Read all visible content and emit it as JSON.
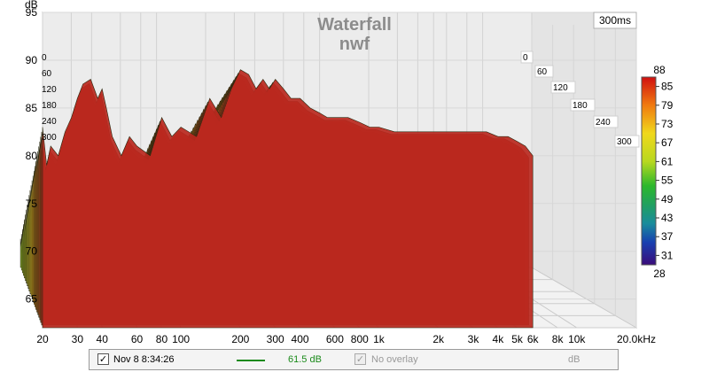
{
  "chart_data": {
    "type": "area",
    "title": "Waterfall",
    "subtitle": "nwf",
    "time_window_label": "300ms",
    "x_unit": "Hz",
    "y_unit": "dB",
    "xlim": [
      20,
      20000
    ],
    "ylim": [
      62,
      95
    ],
    "x_scale": "log",
    "grid": true,
    "x_ticks": [
      "20",
      "30",
      "40",
      "60",
      "80",
      "100",
      "200",
      "300",
      "400",
      "600",
      "800",
      "1k",
      "2k",
      "3k",
      "4k",
      "5k",
      "6k",
      "8k",
      "10k",
      "20.0kHz"
    ],
    "x_tick_values": [
      20,
      30,
      40,
      60,
      80,
      100,
      200,
      300,
      400,
      600,
      800,
      1000,
      2000,
      3000,
      4000,
      5000,
      6000,
      8000,
      10000,
      20000
    ],
    "y_ticks": [
      "95",
      "90",
      "85",
      "80",
      "75",
      "70",
      "65"
    ],
    "y_tick_values": [
      95,
      90,
      85,
      80,
      75,
      70,
      65
    ],
    "time_ticks": [
      "0",
      "60",
      "120",
      "180",
      "240",
      "300"
    ],
    "time_tick_values": [
      0,
      60,
      120,
      180,
      240,
      300
    ],
    "slices": 24,
    "front_slice": {
      "x": [
        20,
        21,
        22,
        24,
        26,
        28,
        30,
        32,
        35,
        38,
        40,
        42,
        45,
        50,
        55,
        60,
        70,
        80,
        90,
        100,
        120,
        140,
        160,
        180,
        200,
        220,
        240,
        260,
        280,
        300,
        330,
        360,
        400,
        450,
        500,
        550,
        600,
        700,
        800,
        900,
        1000,
        1200,
        1500,
        2000,
        2500,
        3000,
        3500,
        4000,
        4500,
        5000,
        5500,
        6000
      ],
      "y": [
        83,
        79,
        81,
        80,
        82.5,
        84,
        86,
        87.5,
        88,
        86,
        87,
        85,
        82,
        80,
        82,
        81,
        80,
        84,
        82,
        83,
        82,
        86,
        84,
        87,
        89,
        88.5,
        87,
        88,
        87,
        88,
        87,
        86,
        86,
        85,
        84.5,
        84,
        84,
        84,
        83.5,
        83,
        83,
        82.5,
        82.5,
        82.5,
        82.5,
        82.5,
        82.5,
        82,
        82,
        81.5,
        81,
        80
      ]
    }
  },
  "colorbar": {
    "max_label": "88",
    "min_label": "28",
    "ticks": [
      "85",
      "79",
      "73",
      "67",
      "61",
      "55",
      "49",
      "43",
      "37",
      "31"
    ],
    "tick_values": [
      85,
      79,
      73,
      67,
      61,
      55,
      49,
      43,
      37,
      31
    ],
    "min": 28,
    "max": 88
  },
  "status": {
    "measurement_checked": true,
    "measurement_check_glyph": "✓",
    "measurement_label": "Nov 8 8:34:26",
    "trace_color": "#1a8a1a",
    "level": "61.5 dB",
    "overlay_checked": true,
    "overlay_check_glyph": "✓",
    "overlay_label": "No overlay",
    "overlay_unit": "dB"
  },
  "colors": {
    "hot": "#c1121f",
    "mid": "#d6d62a",
    "cool": "#2aa82a",
    "title": "#8c8c8c"
  }
}
